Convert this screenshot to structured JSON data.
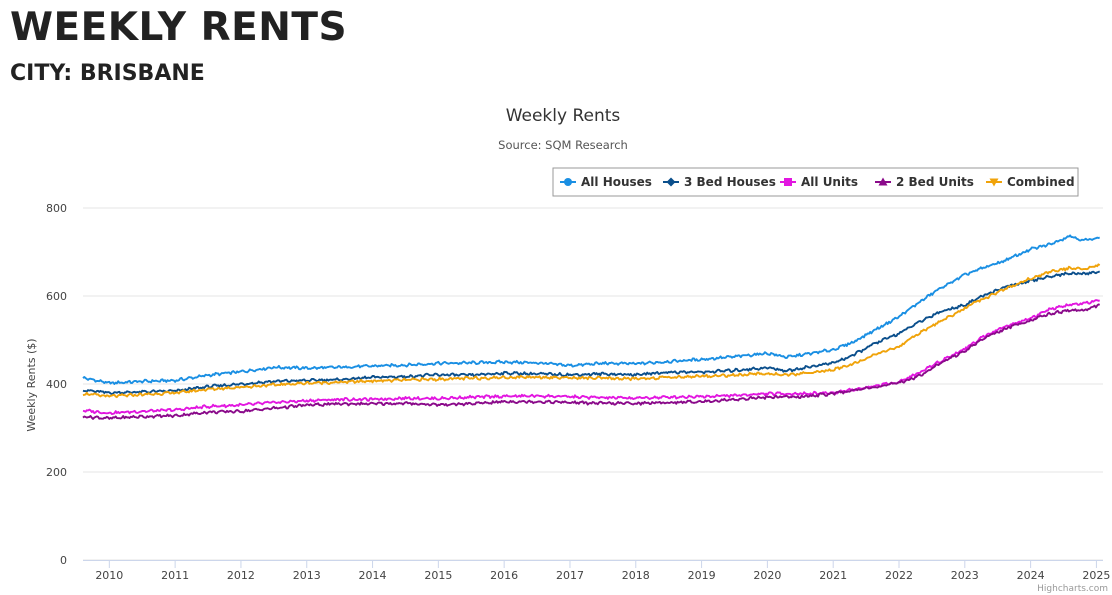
{
  "page": {
    "heading": "WEEKLY RENTS",
    "subheading": "CITY: BRISBANE"
  },
  "credits": "Highcharts.com",
  "chart_data": {
    "type": "line",
    "title": "Weekly Rents",
    "subtitle": "Source: SQM Research",
    "xlabel": "",
    "ylabel": "Weekly Rents ($)",
    "xlim": [
      2009.6,
      2025.1
    ],
    "ylim": [
      0,
      800
    ],
    "x_ticks": [
      2010,
      2011,
      2012,
      2013,
      2014,
      2015,
      2016,
      2017,
      2018,
      2019,
      2020,
      2021,
      2022,
      2023,
      2024,
      2025
    ],
    "y_ticks": [
      0,
      200,
      400,
      600,
      800
    ],
    "grid": "horizontal",
    "legend_position": "top-right",
    "series": [
      {
        "name": "All Houses",
        "color": "#1a8fe3",
        "marker": "circle",
        "points": [
          [
            2009.6,
            414
          ],
          [
            2010.0,
            402
          ],
          [
            2010.5,
            406
          ],
          [
            2011.0,
            408
          ],
          [
            2011.5,
            420
          ],
          [
            2012.0,
            428
          ],
          [
            2012.5,
            438
          ],
          [
            2013.0,
            436
          ],
          [
            2013.5,
            438
          ],
          [
            2014.0,
            441
          ],
          [
            2014.5,
            443
          ],
          [
            2015.0,
            447
          ],
          [
            2015.5,
            448
          ],
          [
            2016.0,
            450
          ],
          [
            2016.5,
            448
          ],
          [
            2017.0,
            442
          ],
          [
            2017.5,
            447
          ],
          [
            2018.0,
            446
          ],
          [
            2018.5,
            451
          ],
          [
            2019.0,
            456
          ],
          [
            2019.5,
            462
          ],
          [
            2020.0,
            470
          ],
          [
            2020.3,
            461
          ],
          [
            2020.6,
            468
          ],
          [
            2021.0,
            478
          ],
          [
            2021.3,
            495
          ],
          [
            2021.6,
            520
          ],
          [
            2022.0,
            553
          ],
          [
            2022.3,
            585
          ],
          [
            2022.6,
            615
          ],
          [
            2023.0,
            648
          ],
          [
            2023.3,
            665
          ],
          [
            2023.6,
            680
          ],
          [
            2024.0,
            706
          ],
          [
            2024.3,
            718
          ],
          [
            2024.6,
            737
          ],
          [
            2024.8,
            726
          ],
          [
            2025.05,
            733
          ]
        ]
      },
      {
        "name": "3 Bed Houses",
        "color": "#0b4f8c",
        "marker": "diamond",
        "points": [
          [
            2009.6,
            386
          ],
          [
            2010.0,
            380
          ],
          [
            2010.5,
            382
          ],
          [
            2011.0,
            384
          ],
          [
            2011.5,
            394
          ],
          [
            2012.0,
            400
          ],
          [
            2012.5,
            406
          ],
          [
            2013.0,
            408
          ],
          [
            2013.5,
            410
          ],
          [
            2014.0,
            415
          ],
          [
            2014.5,
            417
          ],
          [
            2015.0,
            421
          ],
          [
            2015.5,
            420
          ],
          [
            2016.0,
            425
          ],
          [
            2016.5,
            423
          ],
          [
            2017.0,
            421
          ],
          [
            2017.5,
            423
          ],
          [
            2018.0,
            421
          ],
          [
            2018.5,
            427
          ],
          [
            2019.0,
            427
          ],
          [
            2019.5,
            431
          ],
          [
            2020.0,
            437
          ],
          [
            2020.3,
            430
          ],
          [
            2020.6,
            438
          ],
          [
            2021.0,
            448
          ],
          [
            2021.3,
            465
          ],
          [
            2021.6,
            490
          ],
          [
            2022.0,
            515
          ],
          [
            2022.3,
            540
          ],
          [
            2022.6,
            563
          ],
          [
            2023.0,
            580
          ],
          [
            2023.3,
            602
          ],
          [
            2023.6,
            620
          ],
          [
            2024.0,
            634
          ],
          [
            2024.3,
            645
          ],
          [
            2024.6,
            652
          ],
          [
            2024.8,
            650
          ],
          [
            2025.05,
            656
          ]
        ]
      },
      {
        "name": "All Units",
        "color": "#e216e0",
        "marker": "square",
        "points": [
          [
            2009.6,
            340
          ],
          [
            2010.0,
            334
          ],
          [
            2010.5,
            338
          ],
          [
            2011.0,
            341
          ],
          [
            2011.5,
            349
          ],
          [
            2012.0,
            352
          ],
          [
            2012.5,
            358
          ],
          [
            2013.0,
            362
          ],
          [
            2013.5,
            365
          ],
          [
            2014.0,
            365
          ],
          [
            2014.5,
            368
          ],
          [
            2015.0,
            367
          ],
          [
            2015.5,
            370
          ],
          [
            2016.0,
            372
          ],
          [
            2016.5,
            373
          ],
          [
            2017.0,
            371
          ],
          [
            2017.5,
            369
          ],
          [
            2018.0,
            368
          ],
          [
            2018.5,
            370
          ],
          [
            2019.0,
            372
          ],
          [
            2019.5,
            374
          ],
          [
            2020.0,
            378
          ],
          [
            2020.5,
            378
          ],
          [
            2021.0,
            380
          ],
          [
            2021.5,
            392
          ],
          [
            2022.0,
            405
          ],
          [
            2022.3,
            425
          ],
          [
            2022.6,
            450
          ],
          [
            2023.0,
            480
          ],
          [
            2023.3,
            510
          ],
          [
            2023.6,
            530
          ],
          [
            2024.0,
            550
          ],
          [
            2024.3,
            570
          ],
          [
            2024.6,
            580
          ],
          [
            2024.8,
            583
          ],
          [
            2025.05,
            590
          ]
        ]
      },
      {
        "name": "2 Bed Units",
        "color": "#8a0a8a",
        "marker": "triangle",
        "points": [
          [
            2009.6,
            326
          ],
          [
            2010.0,
            322
          ],
          [
            2010.5,
            326
          ],
          [
            2011.0,
            328
          ],
          [
            2011.5,
            336
          ],
          [
            2012.0,
            338
          ],
          [
            2012.5,
            345
          ],
          [
            2013.0,
            352
          ],
          [
            2013.5,
            355
          ],
          [
            2014.0,
            355
          ],
          [
            2014.5,
            356
          ],
          [
            2015.0,
            353
          ],
          [
            2015.5,
            355
          ],
          [
            2016.0,
            360
          ],
          [
            2016.5,
            360
          ],
          [
            2017.0,
            358
          ],
          [
            2017.5,
            356
          ],
          [
            2018.0,
            356
          ],
          [
            2018.5,
            358
          ],
          [
            2019.0,
            360
          ],
          [
            2019.5,
            365
          ],
          [
            2020.0,
            370
          ],
          [
            2020.5,
            371
          ],
          [
            2021.0,
            378
          ],
          [
            2021.5,
            390
          ],
          [
            2022.0,
            402
          ],
          [
            2022.3,
            418
          ],
          [
            2022.6,
            445
          ],
          [
            2023.0,
            475
          ],
          [
            2023.3,
            505
          ],
          [
            2023.6,
            525
          ],
          [
            2024.0,
            545
          ],
          [
            2024.3,
            560
          ],
          [
            2024.6,
            568
          ],
          [
            2024.8,
            567
          ],
          [
            2025.05,
            580
          ]
        ]
      },
      {
        "name": "Combined",
        "color": "#f0a30a",
        "marker": "triangle-down",
        "points": [
          [
            2009.6,
            378
          ],
          [
            2010.0,
            372
          ],
          [
            2010.5,
            376
          ],
          [
            2011.0,
            380
          ],
          [
            2011.5,
            388
          ],
          [
            2012.0,
            393
          ],
          [
            2012.5,
            398
          ],
          [
            2013.0,
            402
          ],
          [
            2013.5,
            404
          ],
          [
            2014.0,
            407
          ],
          [
            2014.5,
            409
          ],
          [
            2015.0,
            411
          ],
          [
            2015.5,
            413
          ],
          [
            2016.0,
            415
          ],
          [
            2016.5,
            416
          ],
          [
            2017.0,
            414
          ],
          [
            2017.5,
            413
          ],
          [
            2018.0,
            412
          ],
          [
            2018.5,
            415
          ],
          [
            2019.0,
            418
          ],
          [
            2019.5,
            420
          ],
          [
            2020.0,
            424
          ],
          [
            2020.3,
            420
          ],
          [
            2020.6,
            425
          ],
          [
            2021.0,
            432
          ],
          [
            2021.3,
            445
          ],
          [
            2021.6,
            465
          ],
          [
            2022.0,
            485
          ],
          [
            2022.3,
            515
          ],
          [
            2022.6,
            540
          ],
          [
            2023.0,
            572
          ],
          [
            2023.3,
            595
          ],
          [
            2023.6,
            615
          ],
          [
            2024.0,
            640
          ],
          [
            2024.3,
            655
          ],
          [
            2024.6,
            664
          ],
          [
            2024.8,
            660
          ],
          [
            2025.05,
            670
          ]
        ]
      }
    ]
  }
}
